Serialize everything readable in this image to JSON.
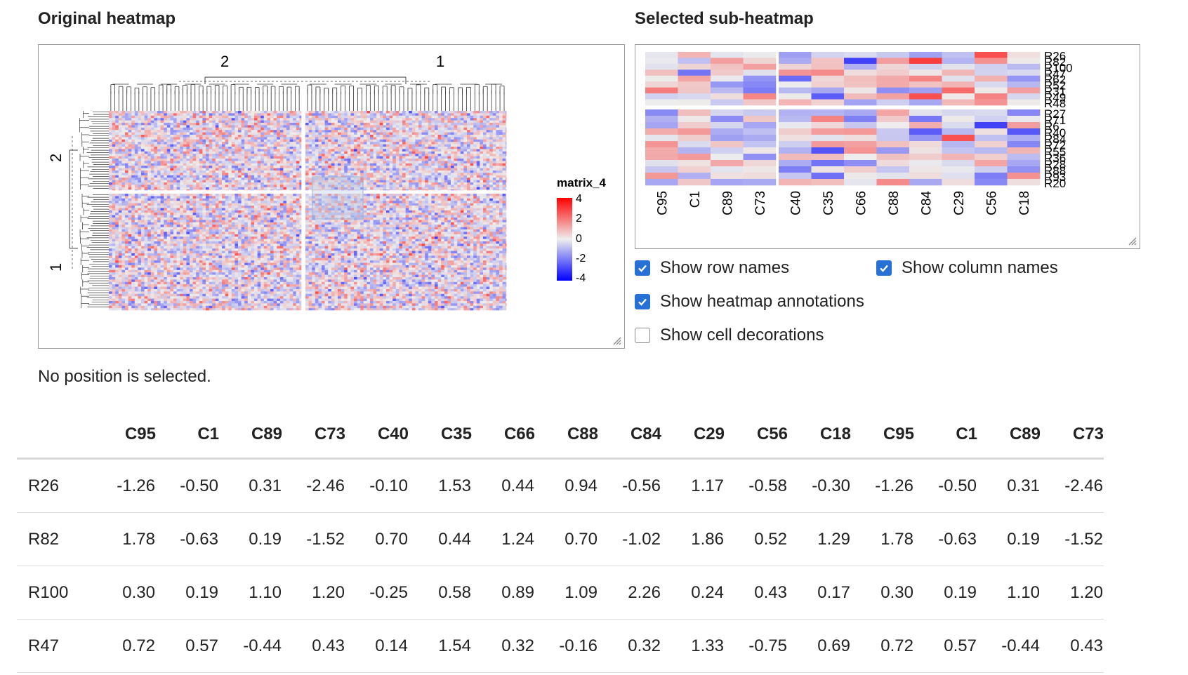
{
  "left_panel": {
    "title": "Original heatmap",
    "column_group_labels": [
      "2",
      "1"
    ],
    "row_group_labels": [
      "2",
      "1"
    ],
    "legend": {
      "title": "matrix_4",
      "ticks": [
        "4",
        "2",
        "0",
        "-2",
        "-4"
      ]
    }
  },
  "right_panel": {
    "title": "Selected sub-heatmap",
    "column_names": [
      "C95",
      "C1",
      "C89",
      "C73",
      "C40",
      "C35",
      "C66",
      "C88",
      "C84",
      "C29",
      "C56",
      "C18"
    ],
    "row_names_top": [
      "R26",
      "R82",
      "R100",
      "R47",
      "R62",
      "R52",
      "R31",
      "R49",
      "R48"
    ],
    "row_names_bottom": [
      "R27",
      "R71",
      "R6",
      "R40",
      "R84",
      "R72",
      "R55",
      "R36",
      "R28",
      "R88",
      "R93",
      "R20"
    ]
  },
  "options": {
    "show_row_names": {
      "label": "Show row names",
      "checked": true
    },
    "show_column_names": {
      "label": "Show column names",
      "checked": true
    },
    "show_heatmap_annotations": {
      "label": "Show heatmap annotations",
      "checked": true
    },
    "show_cell_decorations": {
      "label": "Show cell decorations",
      "checked": false
    }
  },
  "status_text": "No position is selected.",
  "colors": {
    "high": "#ff0000",
    "mid": "#eeeeee",
    "low": "#0000ff",
    "checkbox": "#2670d6"
  },
  "table": {
    "columns": [
      "",
      "C95",
      "C1",
      "C89",
      "C73",
      "C40",
      "C35",
      "C66",
      "C88",
      "C84",
      "C29",
      "C56",
      "C18",
      "C95",
      "C1",
      "C89",
      "C73"
    ],
    "rows": [
      [
        "R26",
        "-1.26",
        "-0.50",
        "0.31",
        "-2.46",
        "-0.10",
        "1.53",
        "0.44",
        "0.94",
        "-0.56",
        "1.17",
        "-0.58",
        "-0.30",
        "-1.26",
        "-0.50",
        "0.31",
        "-2.46"
      ],
      [
        "R82",
        "1.78",
        "-0.63",
        "0.19",
        "-1.52",
        "0.70",
        "0.44",
        "1.24",
        "0.70",
        "-1.02",
        "1.86",
        "0.52",
        "1.29",
        "1.78",
        "-0.63",
        "0.19",
        "-1.52"
      ],
      [
        "R100",
        "0.30",
        "0.19",
        "1.10",
        "1.20",
        "-0.25",
        "0.58",
        "0.89",
        "1.09",
        "2.26",
        "0.24",
        "0.43",
        "0.17",
        "0.30",
        "0.19",
        "1.10",
        "1.20"
      ],
      [
        "R47",
        "0.72",
        "0.57",
        "-0.44",
        "0.43",
        "0.14",
        "1.54",
        "0.32",
        "-0.16",
        "0.32",
        "1.33",
        "-0.75",
        "0.69",
        "0.72",
        "0.57",
        "-0.44",
        "0.43"
      ]
    ]
  }
}
